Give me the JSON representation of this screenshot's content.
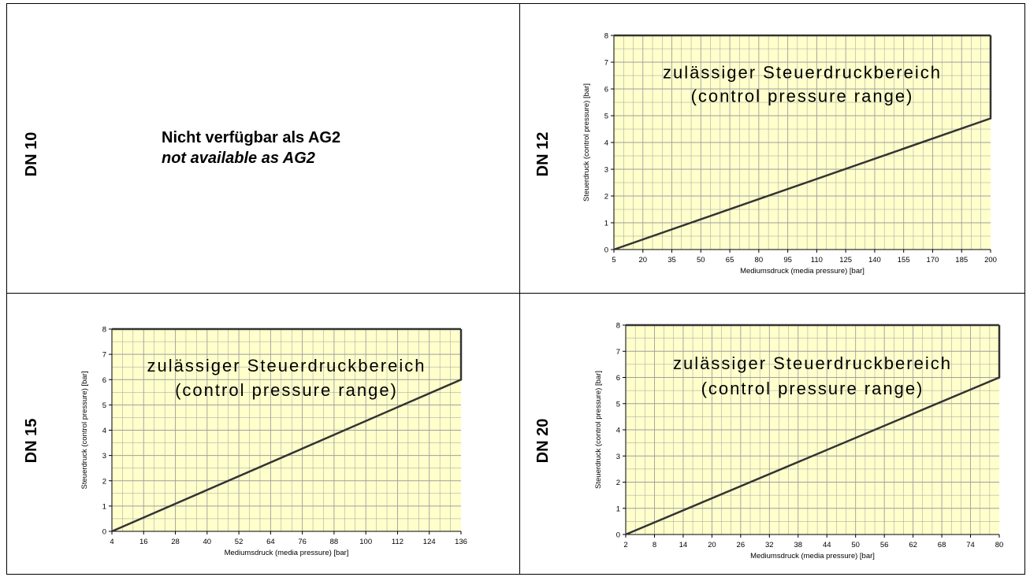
{
  "cells": [
    {
      "label": "DN 10",
      "type": "text",
      "text_de": "Nicht verfügbar als AG2",
      "text_en": "not available as AG2"
    },
    {
      "label": "DN 12"
    },
    {
      "label": "DN 15"
    },
    {
      "label": "DN 20"
    }
  ],
  "colors": {
    "plot_bg": "#FFFFCC",
    "grid": "#9E9E9E",
    "line": "#333333"
  },
  "chart_data": [
    {
      "type": "line",
      "panel": "DN 12",
      "xlabel": "Mediumsdruck (media pressure) [bar]",
      "ylabel": "Steuerdruck (control pressure) [bar]",
      "annotation_line1": "zulässiger Steuerdruckbereich",
      "annotation_line2": "(control pressure range)",
      "xlim": [
        5,
        200
      ],
      "ylim": [
        0,
        8
      ],
      "x_ticks": [
        5,
        20,
        35,
        50,
        65,
        80,
        95,
        110,
        125,
        140,
        155,
        170,
        185,
        200
      ],
      "y_ticks": [
        0,
        1,
        2,
        3,
        4,
        5,
        6,
        7,
        8
      ],
      "grid": true,
      "x": [
        5,
        200,
        200
      ],
      "y": [
        0,
        4.9,
        8
      ]
    },
    {
      "type": "line",
      "panel": "DN 15",
      "xlabel": "Mediumsdruck (media pressure) [bar]",
      "ylabel": "Steuerdruck (control pressure) [bar]",
      "annotation_line1": "zulässiger Steuerdruckbereich",
      "annotation_line2": "(control pressure range)",
      "xlim": [
        4,
        136
      ],
      "ylim": [
        0,
        8
      ],
      "x_ticks": [
        4,
        16,
        28,
        40,
        52,
        64,
        76,
        88,
        100,
        112,
        124,
        136
      ],
      "y_ticks": [
        0,
        1,
        2,
        3,
        4,
        5,
        6,
        7,
        8
      ],
      "grid": true,
      "x": [
        4,
        136,
        136
      ],
      "y": [
        0,
        6,
        8
      ]
    },
    {
      "type": "line",
      "panel": "DN 20",
      "xlabel": "Mediumsdruck (media pressure) [bar]",
      "ylabel": "Steuerdruck (control pressure) [bar]",
      "annotation_line1": "zulässiger Steuerdruckbereich",
      "annotation_line2": "(control pressure range)",
      "xlim": [
        2,
        80
      ],
      "ylim": [
        0,
        8
      ],
      "x_ticks": [
        2,
        8,
        14,
        20,
        26,
        32,
        38,
        44,
        50,
        56,
        62,
        68,
        74,
        80
      ],
      "y_ticks": [
        0,
        1,
        2,
        3,
        4,
        5,
        6,
        7,
        8
      ],
      "grid": true,
      "x": [
        2,
        80,
        80
      ],
      "y": [
        0,
        6,
        8
      ]
    }
  ]
}
